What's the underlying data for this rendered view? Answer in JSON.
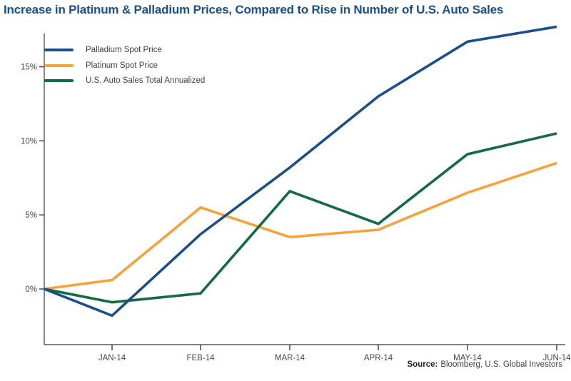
{
  "chart_data": {
    "type": "line",
    "title": "Increase in Platinum & Palladium Prices, Compared to Rise in Number of U.S. Auto Sales",
    "x_tick_labels": [
      "JAN-14",
      "FEB-14",
      "MAR-14",
      "APR-14",
      "MAY-14",
      "JUN-14"
    ],
    "x_note": "Each series starts at an unlabeled 0% baseline point on the y-axis one interval before JAN-14",
    "y_tick_labels": [
      "0%",
      "5%",
      "10%",
      "15%"
    ],
    "y_tick_values": [
      0,
      5,
      10,
      15
    ],
    "ylim": [
      -3.8,
      17.8
    ],
    "grid": false,
    "legend_position": "top-left-inside",
    "series": [
      {
        "name": "Palladium Spot Price",
        "color": "#1a4f8c",
        "values": [
          0,
          -1.8,
          3.7,
          8.2,
          13.0,
          16.7,
          17.7
        ]
      },
      {
        "name": "Platinum Spot Price",
        "color": "#f9a23c",
        "values": [
          0,
          0.6,
          5.5,
          3.5,
          4.0,
          6.5,
          8.5
        ]
      },
      {
        "name": "U.S. Auto Sales Total Annualized",
        "color": "#126b42",
        "values": [
          0,
          -0.9,
          -0.3,
          6.6,
          4.4,
          9.1,
          10.5
        ]
      }
    ]
  },
  "footer": {
    "source_label": "Source:",
    "source_text": "Bloomberg, U.S. Global Investors"
  },
  "colors": {
    "title": "#1a4f8c",
    "axis": "#3a393b",
    "tick_text": "#48484a",
    "background": "#ffffff"
  }
}
